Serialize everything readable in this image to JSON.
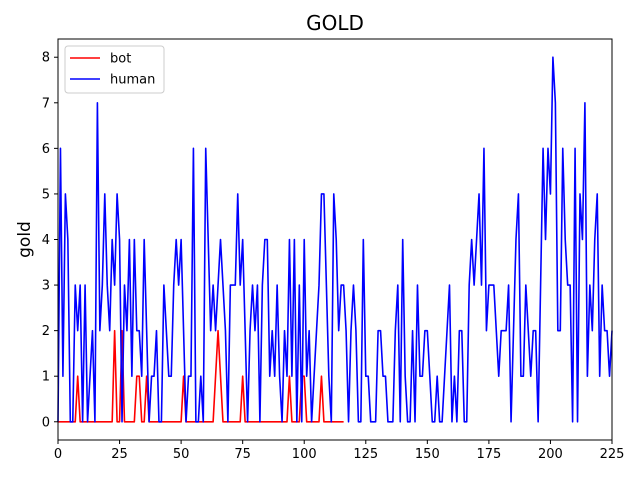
{
  "chart_data": {
    "type": "line",
    "title": "GOLD",
    "xlabel": "",
    "ylabel": "gold",
    "xlim": [
      0,
      225
    ],
    "ylim": [
      -0.4,
      8.4
    ],
    "xticks": [
      0,
      25,
      50,
      75,
      100,
      125,
      150,
      175,
      200,
      225
    ],
    "yticks": [
      0,
      1,
      2,
      3,
      4,
      5,
      6,
      7,
      8
    ],
    "grid": false,
    "legend": {
      "placement": "top-left",
      "entries": [
        "bot",
        "human"
      ]
    },
    "series": [
      {
        "name": "bot",
        "color": "#ff0000",
        "x": [
          0,
          1,
          2,
          3,
          4,
          5,
          6,
          7,
          8,
          9,
          10,
          11,
          12,
          13,
          14,
          15,
          16,
          17,
          18,
          19,
          20,
          21,
          22,
          23,
          24,
          25,
          26,
          27,
          28,
          29,
          30,
          31,
          32,
          33,
          34,
          35,
          36,
          37,
          38,
          39,
          40,
          41,
          42,
          43,
          44,
          45,
          46,
          47,
          48,
          49,
          50,
          51,
          52,
          53,
          54,
          55,
          56,
          57,
          58,
          59,
          60,
          61,
          62,
          63,
          64,
          65,
          66,
          67,
          68,
          69,
          70,
          71,
          72,
          73,
          74,
          75,
          76,
          77,
          78,
          79,
          80,
          81,
          82,
          83,
          84,
          85,
          86,
          87,
          88,
          89,
          90,
          91,
          92,
          93,
          94,
          95,
          96,
          97,
          98,
          99,
          100,
          101,
          102,
          103,
          104,
          105,
          106,
          107,
          108,
          109,
          110,
          111,
          112,
          113,
          114,
          115,
          116
        ],
        "y": [
          0,
          0,
          0,
          0,
          0,
          0,
          0,
          0,
          1,
          0,
          0,
          0,
          0,
          0,
          0,
          0,
          0,
          0,
          0,
          0,
          0,
          0,
          0,
          2,
          0,
          0,
          2,
          0,
          0,
          0,
          0,
          0,
          1,
          1,
          0,
          0,
          1,
          0,
          0,
          0,
          0,
          0,
          0,
          0,
          0,
          0,
          0,
          0,
          0,
          0,
          0,
          1,
          0,
          0,
          0,
          0,
          0,
          0,
          0,
          0,
          0,
          0,
          0,
          0,
          1,
          2,
          1,
          0,
          0,
          0,
          0,
          0,
          0,
          0,
          0,
          1,
          0,
          0,
          0,
          0,
          0,
          0,
          0,
          0,
          0,
          0,
          0,
          0,
          0,
          0,
          0,
          0,
          0,
          0,
          1,
          0,
          0,
          0,
          0,
          1,
          1,
          0,
          0,
          0,
          0,
          0,
          0,
          1,
          0,
          0,
          0,
          0,
          0,
          0,
          0,
          0,
          0
        ]
      },
      {
        "name": "human",
        "color": "#0000ff",
        "x": [
          0,
          1,
          2,
          3,
          4,
          5,
          6,
          7,
          8,
          9,
          10,
          11,
          12,
          13,
          14,
          15,
          16,
          17,
          18,
          19,
          20,
          21,
          22,
          23,
          24,
          25,
          26,
          27,
          28,
          29,
          30,
          31,
          32,
          33,
          34,
          35,
          36,
          37,
          38,
          39,
          40,
          41,
          42,
          43,
          44,
          45,
          46,
          47,
          48,
          49,
          50,
          51,
          52,
          53,
          54,
          55,
          56,
          57,
          58,
          59,
          60,
          61,
          62,
          63,
          64,
          65,
          66,
          67,
          68,
          69,
          70,
          71,
          72,
          73,
          74,
          75,
          76,
          77,
          78,
          79,
          80,
          81,
          82,
          83,
          84,
          85,
          86,
          87,
          88,
          89,
          90,
          91,
          92,
          93,
          94,
          95,
          96,
          97,
          98,
          99,
          100,
          101,
          102,
          103,
          104,
          105,
          106,
          107,
          108,
          109,
          110,
          111,
          112,
          113,
          114,
          115,
          116,
          117,
          118,
          119,
          120,
          121,
          122,
          123,
          124,
          125,
          126,
          127,
          128,
          129,
          130,
          131,
          132,
          133,
          134,
          135,
          136,
          137,
          138,
          139,
          140,
          141,
          142,
          143,
          144,
          145,
          146,
          147,
          148,
          149,
          150,
          151,
          152,
          153,
          154,
          155,
          156,
          157,
          158,
          159,
          160,
          161,
          162,
          163,
          164,
          165,
          166,
          167,
          168,
          169,
          170,
          171,
          172,
          173,
          174,
          175,
          176,
          177,
          178,
          179,
          180,
          181,
          182,
          183,
          184,
          185,
          186,
          187,
          188,
          189,
          190,
          191,
          192,
          193,
          194,
          195,
          196,
          197,
          198,
          199,
          200,
          201,
          202,
          203,
          204,
          205,
          206,
          207,
          208,
          209,
          210,
          211,
          212,
          213,
          214,
          215,
          216,
          217,
          218,
          219,
          220,
          221,
          222,
          223,
          224,
          225
        ],
        "y": [
          0,
          6,
          1,
          5,
          4,
          0,
          0,
          3,
          2,
          3,
          0,
          3,
          0,
          1,
          2,
          0,
          7,
          2,
          3,
          5,
          3,
          2,
          4,
          3,
          5,
          4,
          0,
          3,
          2,
          4,
          1,
          4,
          2,
          2,
          1,
          4,
          2,
          0,
          1,
          1,
          2,
          0,
          0,
          3,
          2,
          1,
          1,
          3,
          4,
          3,
          4,
          2,
          0,
          1,
          1,
          6,
          0,
          0,
          1,
          0,
          6,
          4,
          2,
          3,
          2,
          3,
          4,
          3,
          2,
          0,
          3,
          3,
          3,
          5,
          3,
          4,
          2,
          0,
          2,
          3,
          2,
          3,
          0,
          3,
          4,
          4,
          1,
          2,
          1,
          3,
          1,
          0,
          2,
          1,
          4,
          1,
          4,
          0,
          3,
          0,
          4,
          1,
          2,
          0,
          1,
          2,
          3,
          5,
          5,
          3,
          1,
          0,
          5,
          4,
          2,
          3,
          3,
          2,
          0,
          2,
          3,
          2,
          0,
          0,
          4,
          1,
          1,
          0,
          0,
          0,
          2,
          2,
          1,
          1,
          0,
          0,
          0,
          2,
          3,
          0,
          4,
          1,
          0,
          0,
          2,
          0,
          3,
          1,
          1,
          2,
          2,
          1,
          0,
          0,
          1,
          0,
          0,
          1,
          2,
          3,
          0,
          1,
          0,
          2,
          2,
          0,
          0,
          3,
          4,
          3,
          4,
          5,
          3,
          6,
          2,
          3,
          3,
          3,
          2,
          1,
          2,
          2,
          2,
          3,
          0,
          2,
          4,
          5,
          1,
          1,
          3,
          2,
          1,
          2,
          2,
          0,
          3,
          6,
          4,
          6,
          5,
          8,
          7,
          2,
          2,
          6,
          4,
          3,
          3,
          0,
          6,
          0,
          5,
          4,
          7,
          1,
          3,
          2,
          4,
          5,
          1,
          3,
          2,
          2,
          1,
          2
        ]
      }
    ]
  }
}
